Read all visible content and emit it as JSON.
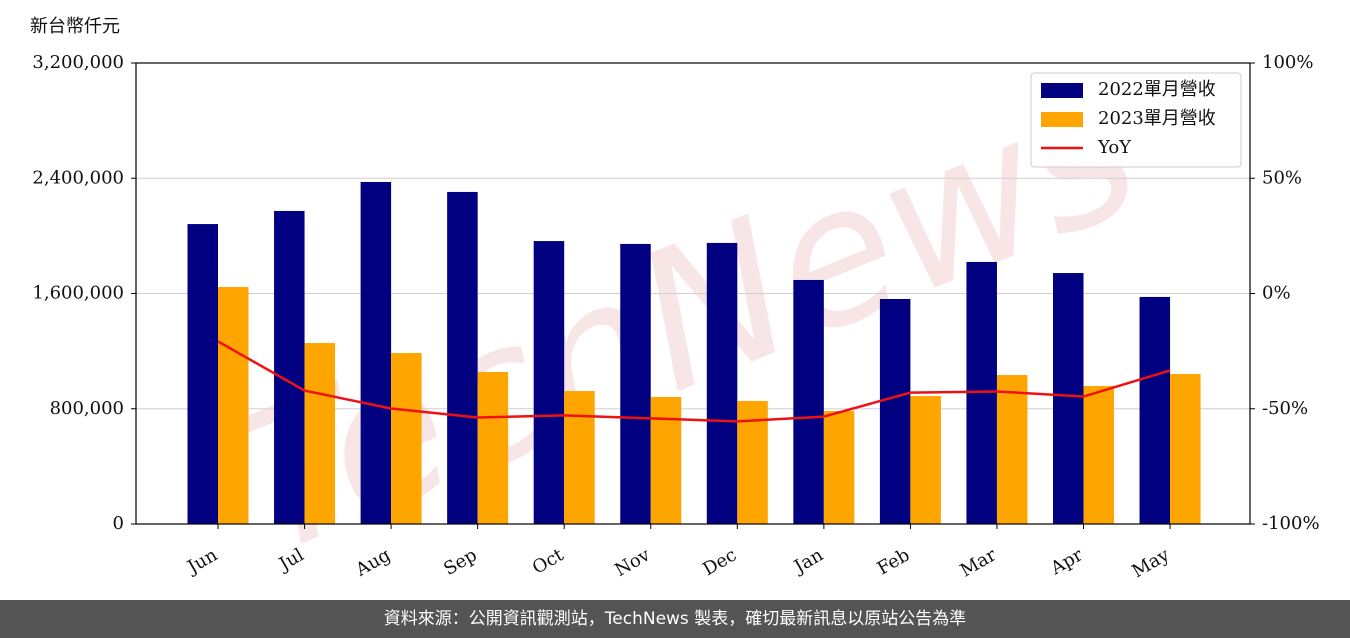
{
  "chart_data": {
    "type": "bar_line",
    "y_label": "新台幣仟元",
    "watermark": "TechNews",
    "categories": [
      "Jun",
      "Jul",
      "Aug",
      "Sep",
      "Oct",
      "Nov",
      "Dec",
      "Jan",
      "Feb",
      "Mar",
      "Apr",
      "May"
    ],
    "series": [
      {
        "name": "2022單月營收",
        "color": "#000080",
        "type": "bar",
        "values": [
          2082000,
          2173000,
          2374000,
          2305000,
          1964000,
          1944000,
          1951000,
          1694000,
          1562000,
          1819000,
          1742000,
          1576000
        ]
      },
      {
        "name": "2023單月營收",
        "color": "#ffa500",
        "type": "bar",
        "values": [
          1645000,
          1256000,
          1187000,
          1055000,
          923000,
          882000,
          854000,
          784000,
          888000,
          1034000,
          958000,
          1041000
        ]
      },
      {
        "name": "YoY",
        "color": "#ee1111",
        "type": "line",
        "axis": "y2",
        "values": [
          -20.8,
          -42.1,
          -49.9,
          -53.8,
          -52.9,
          -54.2,
          -55.5,
          -53.4,
          -43.0,
          -42.5,
          -44.7,
          -33.4
        ]
      }
    ],
    "ylim": [
      0,
      3200000
    ],
    "yticks": [
      0,
      {
        "value": 800000,
        "label": "800,000"
      },
      {
        "value": 1600000,
        "label": "1,600,000"
      },
      {
        "value": 2400000,
        "label": "2,400,000"
      },
      {
        "value": 3200000,
        "label": "3,200,000"
      }
    ],
    "y2lim": [
      -100,
      100
    ],
    "y2ticks": [
      {
        "value": -100,
        "label": "-100%"
      },
      {
        "value": -50,
        "label": "-50%"
      },
      {
        "value": 0,
        "label": "0%"
      },
      {
        "value": 50,
        "label": "50%"
      },
      {
        "value": 100,
        "label": "100%"
      }
    ],
    "grid": true,
    "legend": "upper right"
  },
  "footer": "資料來源：公開資訊觀測站，TechNews 製表，確切最新訊息以原站公告為準"
}
